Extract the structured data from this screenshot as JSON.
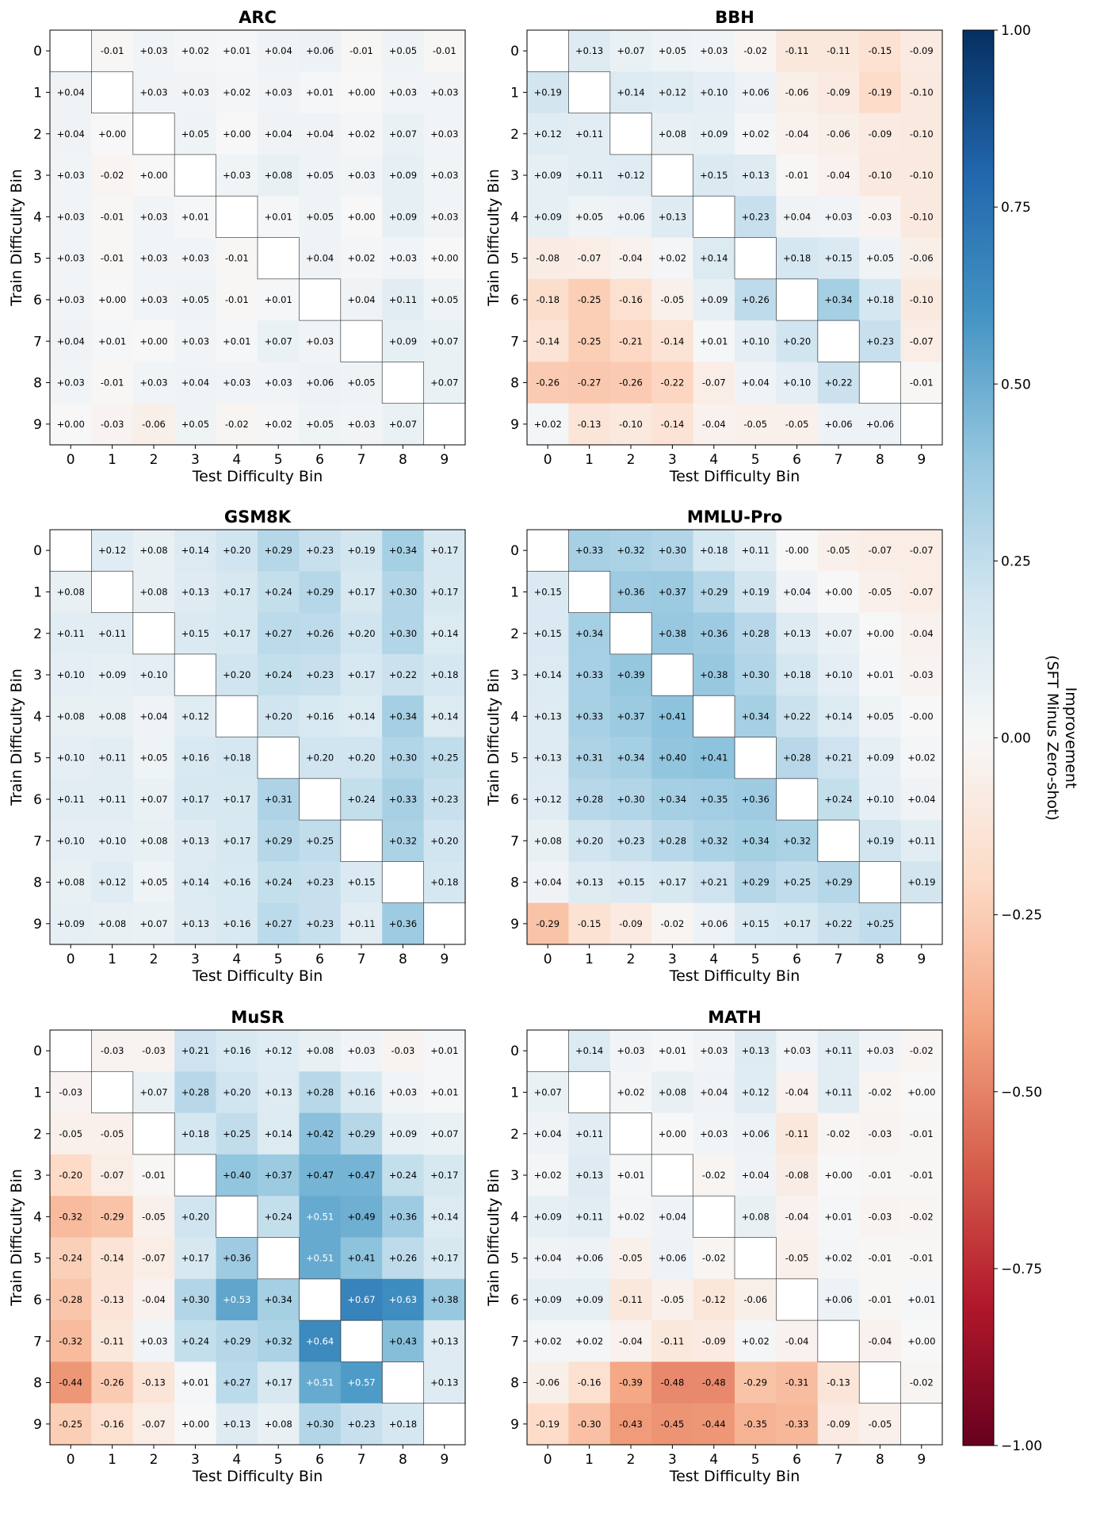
{
  "chart_data": {
    "type": "heatmap",
    "colormap": "RdBu",
    "vlim": [
      -1.0,
      1.0
    ],
    "colorbar": {
      "label_line1": "Improvement",
      "label_line2": "(SFT Minus Zero-shot)",
      "ticks": [
        -1.0,
        -0.75,
        -0.5,
        -0.25,
        0.0,
        0.25,
        0.5,
        0.75,
        1.0
      ]
    },
    "xlabel": "Test Difficulty Bin",
    "ylabel": "Train Difficulty Bin",
    "categories": [
      0,
      1,
      2,
      3,
      4,
      5,
      6,
      7,
      8,
      9
    ],
    "panels": [
      {
        "title": "ARC",
        "values": [
          [
            null,
            -0.01,
            0.03,
            0.02,
            0.01,
            0.04,
            0.06,
            -0.01,
            0.05,
            -0.01
          ],
          [
            0.04,
            null,
            0.03,
            0.03,
            0.02,
            0.03,
            0.01,
            0.0,
            0.03,
            0.03
          ],
          [
            0.04,
            0.0,
            null,
            0.05,
            0.0,
            0.04,
            0.04,
            0.02,
            0.07,
            0.03
          ],
          [
            0.03,
            -0.02,
            0.0,
            null,
            0.03,
            0.08,
            0.05,
            0.03,
            0.09,
            0.03
          ],
          [
            0.03,
            -0.01,
            0.03,
            0.01,
            null,
            0.01,
            0.05,
            0.0,
            0.09,
            0.03
          ],
          [
            0.03,
            -0.01,
            0.03,
            0.03,
            -0.01,
            null,
            0.04,
            0.02,
            0.03,
            0.0
          ],
          [
            0.03,
            0.0,
            0.03,
            0.05,
            -0.01,
            0.01,
            null,
            0.04,
            0.11,
            0.05
          ],
          [
            0.04,
            0.01,
            0.0,
            0.03,
            0.01,
            0.07,
            0.03,
            null,
            0.09,
            0.07
          ],
          [
            0.03,
            -0.01,
            0.03,
            0.04,
            0.03,
            0.03,
            0.06,
            0.05,
            null,
            0.07
          ],
          [
            0.0,
            -0.03,
            -0.06,
            0.05,
            -0.02,
            0.02,
            0.05,
            0.03,
            0.07,
            null
          ]
        ]
      },
      {
        "title": "BBH",
        "values": [
          [
            null,
            0.13,
            0.07,
            0.05,
            0.03,
            -0.02,
            -0.11,
            -0.11,
            -0.15,
            -0.09
          ],
          [
            0.19,
            null,
            0.14,
            0.12,
            0.1,
            0.06,
            -0.06,
            -0.09,
            -0.19,
            -0.1
          ],
          [
            0.12,
            0.11,
            null,
            0.08,
            0.09,
            0.02,
            -0.04,
            -0.06,
            -0.09,
            -0.1
          ],
          [
            0.09,
            0.11,
            0.12,
            null,
            0.15,
            0.13,
            -0.01,
            -0.04,
            -0.1,
            -0.1
          ],
          [
            0.09,
            0.05,
            0.06,
            0.13,
            null,
            0.23,
            0.04,
            0.03,
            -0.03,
            -0.1
          ],
          [
            -0.08,
            -0.07,
            -0.04,
            0.02,
            0.14,
            null,
            0.18,
            0.15,
            0.05,
            -0.06
          ],
          [
            -0.18,
            -0.25,
            -0.16,
            -0.05,
            0.09,
            0.26,
            null,
            0.34,
            0.18,
            -0.1
          ],
          [
            -0.14,
            -0.25,
            -0.21,
            -0.14,
            0.01,
            0.1,
            0.2,
            null,
            0.23,
            -0.07
          ],
          [
            -0.26,
            -0.27,
            -0.26,
            -0.22,
            -0.07,
            0.04,
            0.1,
            0.22,
            null,
            -0.01
          ],
          [
            0.02,
            -0.13,
            -0.1,
            -0.14,
            -0.04,
            -0.05,
            -0.05,
            0.06,
            0.06,
            null
          ]
        ]
      },
      {
        "title": "GSM8K",
        "values": [
          [
            null,
            0.12,
            0.08,
            0.14,
            0.2,
            0.29,
            0.23,
            0.19,
            0.34,
            0.17
          ],
          [
            0.08,
            null,
            0.08,
            0.13,
            0.17,
            0.24,
            0.29,
            0.17,
            0.3,
            0.17
          ],
          [
            0.11,
            0.11,
            null,
            0.15,
            0.17,
            0.27,
            0.26,
            0.2,
            0.3,
            0.14
          ],
          [
            0.1,
            0.09,
            0.1,
            null,
            0.2,
            0.24,
            0.23,
            0.17,
            0.22,
            0.18
          ],
          [
            0.08,
            0.08,
            0.04,
            0.12,
            null,
            0.2,
            0.16,
            0.14,
            0.34,
            0.14
          ],
          [
            0.1,
            0.11,
            0.05,
            0.16,
            0.18,
            null,
            0.2,
            0.2,
            0.3,
            0.25
          ],
          [
            0.11,
            0.11,
            0.07,
            0.17,
            0.17,
            0.31,
            null,
            0.24,
            0.33,
            0.23
          ],
          [
            0.1,
            0.1,
            0.08,
            0.13,
            0.17,
            0.29,
            0.25,
            null,
            0.32,
            0.2
          ],
          [
            0.08,
            0.12,
            0.05,
            0.14,
            0.16,
            0.24,
            0.23,
            0.15,
            null,
            0.18
          ],
          [
            0.09,
            0.08,
            0.07,
            0.13,
            0.16,
            0.27,
            0.23,
            0.11,
            0.36,
            null
          ]
        ]
      },
      {
        "title": "MMLU-Pro",
        "values": [
          [
            null,
            0.33,
            0.32,
            0.3,
            0.18,
            0.11,
            -0.0,
            -0.05,
            -0.07,
            -0.07
          ],
          [
            0.15,
            null,
            0.36,
            0.37,
            0.29,
            0.19,
            0.04,
            0.0,
            -0.05,
            -0.07
          ],
          [
            0.15,
            0.34,
            null,
            0.38,
            0.36,
            0.28,
            0.13,
            0.07,
            0.0,
            -0.04
          ],
          [
            0.14,
            0.33,
            0.39,
            null,
            0.38,
            0.3,
            0.18,
            0.1,
            0.01,
            -0.03
          ],
          [
            0.13,
            0.33,
            0.37,
            0.41,
            null,
            0.34,
            0.22,
            0.14,
            0.05,
            -0.0
          ],
          [
            0.13,
            0.31,
            0.34,
            0.4,
            0.41,
            null,
            0.28,
            0.21,
            0.09,
            0.02
          ],
          [
            0.12,
            0.28,
            0.3,
            0.34,
            0.35,
            0.36,
            null,
            0.24,
            0.1,
            0.04
          ],
          [
            0.08,
            0.2,
            0.23,
            0.28,
            0.32,
            0.34,
            0.32,
            null,
            0.19,
            0.11
          ],
          [
            0.04,
            0.13,
            0.15,
            0.17,
            0.21,
            0.29,
            0.25,
            0.29,
            null,
            0.19
          ],
          [
            -0.29,
            -0.15,
            -0.09,
            -0.02,
            0.06,
            0.15,
            0.17,
            0.22,
            0.25,
            null
          ]
        ]
      },
      {
        "title": "MuSR",
        "values": [
          [
            null,
            -0.03,
            -0.03,
            0.21,
            0.16,
            0.12,
            0.08,
            0.03,
            -0.03,
            0.01
          ],
          [
            -0.03,
            null,
            0.07,
            0.28,
            0.2,
            0.13,
            0.28,
            0.16,
            0.03,
            0.01
          ],
          [
            -0.05,
            -0.05,
            null,
            0.18,
            0.25,
            0.14,
            0.42,
            0.29,
            0.09,
            0.07
          ],
          [
            -0.2,
            -0.07,
            -0.01,
            null,
            0.4,
            0.37,
            0.47,
            0.47,
            0.24,
            0.17
          ],
          [
            -0.32,
            -0.29,
            -0.05,
            0.2,
            null,
            0.24,
            0.51,
            0.49,
            0.36,
            0.14
          ],
          [
            -0.24,
            -0.14,
            -0.07,
            0.17,
            0.36,
            null,
            0.51,
            0.41,
            0.26,
            0.17
          ],
          [
            -0.28,
            -0.13,
            -0.04,
            0.3,
            0.53,
            0.34,
            null,
            0.67,
            0.63,
            0.38
          ],
          [
            -0.32,
            -0.11,
            0.03,
            0.24,
            0.29,
            0.32,
            0.64,
            null,
            0.43,
            0.13
          ],
          [
            -0.44,
            -0.26,
            -0.13,
            0.01,
            0.27,
            0.17,
            0.51,
            0.57,
            null,
            0.13
          ],
          [
            -0.25,
            -0.16,
            -0.07,
            0.0,
            0.13,
            0.08,
            0.3,
            0.23,
            0.18,
            null
          ]
        ]
      },
      {
        "title": "MATH",
        "values": [
          [
            null,
            0.14,
            0.03,
            0.01,
            0.03,
            0.13,
            0.03,
            0.11,
            0.03,
            -0.02
          ],
          [
            0.07,
            null,
            0.02,
            0.08,
            0.04,
            0.12,
            -0.04,
            0.11,
            -0.02,
            0.0
          ],
          [
            0.04,
            0.11,
            null,
            0.0,
            0.03,
            0.06,
            -0.11,
            -0.02,
            -0.03,
            -0.01
          ],
          [
            0.02,
            0.13,
            0.01,
            null,
            -0.02,
            0.04,
            -0.08,
            0.0,
            -0.01,
            -0.01
          ],
          [
            0.09,
            0.11,
            0.02,
            0.04,
            null,
            0.08,
            -0.04,
            0.01,
            -0.03,
            -0.02
          ],
          [
            0.04,
            0.06,
            -0.05,
            0.06,
            -0.02,
            null,
            -0.05,
            0.02,
            -0.01,
            -0.01
          ],
          [
            0.09,
            0.09,
            -0.11,
            -0.05,
            -0.12,
            -0.06,
            null,
            0.06,
            -0.01,
            0.01
          ],
          [
            0.02,
            0.02,
            -0.04,
            -0.11,
            -0.09,
            0.02,
            -0.04,
            null,
            -0.04,
            0.0
          ],
          [
            -0.06,
            -0.16,
            -0.39,
            -0.48,
            -0.48,
            -0.29,
            -0.31,
            -0.13,
            null,
            -0.02
          ],
          [
            -0.19,
            -0.3,
            -0.43,
            -0.45,
            -0.44,
            -0.35,
            -0.33,
            -0.09,
            -0.05,
            null
          ]
        ]
      }
    ]
  }
}
